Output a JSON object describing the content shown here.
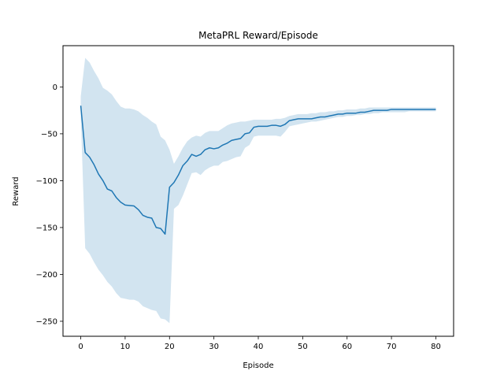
{
  "chart_data": {
    "type": "line",
    "title": "MetaPRL Reward/Episode",
    "xlabel": "Episode",
    "ylabel": "Reward",
    "xlim": [
      -4,
      84
    ],
    "ylim": [
      -266,
      44
    ],
    "xticks": [
      0,
      10,
      20,
      30,
      40,
      50,
      60,
      70,
      80
    ],
    "yticks": [
      0,
      -50,
      -100,
      -150,
      -200,
      -250
    ],
    "xtick_labels": [
      "0",
      "10",
      "20",
      "30",
      "40",
      "50",
      "60",
      "70",
      "80"
    ],
    "ytick_labels": [
      "0",
      "−50",
      "−100",
      "−150",
      "−200",
      "−250"
    ],
    "grid": false,
    "legend": "none",
    "series": [
      {
        "color": "#1f77b4",
        "band_color": "#1f77b4",
        "band_opacity": 0.2,
        "x": [
          0,
          1,
          2,
          3,
          4,
          5,
          6,
          7,
          8,
          9,
          10,
          11,
          12,
          13,
          14,
          15,
          16,
          17,
          18,
          19,
          20,
          21,
          22,
          23,
          24,
          25,
          26,
          27,
          28,
          29,
          30,
          31,
          32,
          33,
          34,
          35,
          36,
          37,
          38,
          39,
          40,
          41,
          42,
          43,
          44,
          45,
          46,
          47,
          48,
          49,
          50,
          51,
          52,
          53,
          54,
          55,
          56,
          57,
          58,
          59,
          60,
          61,
          62,
          63,
          64,
          65,
          66,
          67,
          68,
          69,
          70,
          71,
          72,
          73,
          74,
          75,
          76,
          77,
          78,
          79,
          80
        ],
        "values": [
          -20,
          -70,
          -75,
          -83,
          -93,
          -100,
          -109,
          -111,
          -118,
          -123,
          -126,
          -126.5,
          -127,
          -131,
          -137,
          -139,
          -140,
          -150,
          -151,
          -157,
          -107,
          -102,
          -94,
          -84,
          -79,
          -72,
          -74,
          -72,
          -67,
          -65,
          -66,
          -65,
          -62,
          -60,
          -57,
          -56,
          -55,
          -50,
          -49,
          -43,
          -42,
          -42,
          -42,
          -41,
          -41,
          -42,
          -40,
          -36,
          -35,
          -34,
          -34,
          -34,
          -34,
          -33,
          -32,
          -32,
          -31,
          -30,
          -29,
          -29,
          -28,
          -28,
          -28,
          -27,
          -27,
          -26,
          -25,
          -25,
          -25,
          -25,
          -24,
          -24,
          -24,
          -24,
          -24,
          -24,
          -24,
          -24,
          -24,
          -24,
          -24
        ],
        "upper": [
          -10,
          31,
          26,
          17,
          9,
          -1,
          -4,
          -8,
          -15,
          -21,
          -23,
          -23,
          -24,
          -26,
          -30,
          -33,
          -37,
          -40,
          -53,
          -57,
          -67,
          -82,
          -74,
          -65,
          -58,
          -54,
          -52,
          -53,
          -49,
          -47,
          -47,
          -47,
          -44,
          -41,
          -39,
          -38,
          -37,
          -37,
          -36,
          -35,
          -35,
          -35,
          -35,
          -35,
          -34,
          -34,
          -33,
          -31,
          -30,
          -29,
          -29,
          -29,
          -28,
          -28,
          -27,
          -27,
          -26,
          -26,
          -25,
          -25,
          -24,
          -24,
          -24,
          -23,
          -23,
          -22,
          -22,
          -22,
          -22,
          -22,
          -22,
          -22,
          -22,
          -22,
          -22,
          -22,
          -22,
          -22,
          -22,
          -22,
          -22
        ],
        "lower": [
          -30,
          -172,
          -178,
          -187,
          -195,
          -201,
          -208,
          -213,
          -220,
          -225,
          -226,
          -227,
          -227,
          -229,
          -234,
          -236,
          -238,
          -239,
          -247,
          -248,
          -252,
          -130,
          -126,
          -116,
          -104,
          -92,
          -91,
          -94,
          -89,
          -86,
          -84,
          -84,
          -80,
          -79,
          -77,
          -75,
          -74,
          -65,
          -62,
          -53,
          -52,
          -52,
          -52,
          -52,
          -52,
          -53,
          -48,
          -42,
          -41,
          -40,
          -39,
          -38,
          -37,
          -37,
          -36,
          -35,
          -34,
          -33,
          -32,
          -32,
          -31,
          -31,
          -30,
          -30,
          -29,
          -29,
          -28,
          -28,
          -27,
          -27,
          -27,
          -27,
          -27,
          -27,
          -26,
          -26,
          -26,
          -26,
          -26,
          -26,
          -26
        ]
      }
    ]
  }
}
